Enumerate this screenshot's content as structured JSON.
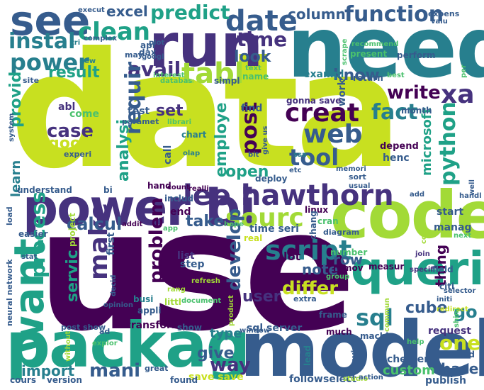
{
  "palette": {
    "yellow": "#c8e020",
    "lime": "#a2da37",
    "green": "#4ac16d",
    "teal": "#1fa187",
    "cyan": "#277f8e",
    "blue": "#365c8d",
    "indigo": "#46327e",
    "purple": "#440154"
  },
  "words": {
    "data": "data",
    "use": "use",
    "need": "need",
    "model": "model",
    "packag": "packag",
    "code": "code",
    "queri": "queri",
    "power_bi": "power bi",
    "run": "run",
    "see": "see",
    "want": "want",
    "lee_hawthorn": "lee hawthorn",
    "creat": "creat",
    "web": "web",
    "tool": "tool",
    "sourc": "sourc",
    "date": "date",
    "make": "make",
    "script": "script",
    "sql": "sql",
    "one": "one",
    "function": "function",
    "clean": "clean",
    "tabl": "tabl",
    "power": "power",
    "instal": "instal",
    "predict": "predict",
    "excel": "excel",
    "column": "column",
    "time": "time",
    "avail": "avail",
    "requir": "requir",
    "look": "look",
    "result": "result",
    "write": "write",
    "know": "know",
    "xa": "xa",
    "fact": "fact",
    "python": "python",
    "post": "post",
    "process": "process",
    "provid": "provid",
    "case": "case",
    "good": "good",
    "set": "set",
    "employe": "employe",
    "analysi": "analysi",
    "microsoft": "microsoft",
    "learn": "learn",
    "open": "open",
    "calcul": "calcul",
    "take": "take",
    "problem": "problem",
    "develop": "develop",
    "differ": "differ",
    "servic": "servic",
    "user": "user",
    "mani": "mani",
    "import": "import",
    "give": "give",
    "way": "way",
    "go": "go",
    "base": "base",
    "cube": "cube",
    "note": "note",
    "row": "row",
    "thing": "thing",
    "lot": "lot",
    "list": "list",
    "step": "step",
    "type": "type",
    "transform": "transform",
    "sql_server": "sql server",
    "save_save": "save save",
    "custom": "custom",
    "publish": "publish",
    "select": "select",
    "follow": "follow",
    "chester": "chester",
    "request": "request",
    "much": "much",
    "machin": "machin",
    "start": "start",
    "henc": "henc",
    "depend": "depend",
    "manag": "manag",
    "end": "end",
    "time_seri": "time seri",
    "first": "first",
    "project": "project",
    "exampl": "exampl",
    "work": "work",
    "gonna_save": "gonna save",
    "test": "test",
    "come": "come",
    "abl": "abl",
    "find": "find",
    "call": "call",
    "chart": "chart",
    "understand": "understand",
    "bi": "bi",
    "hand": "hand",
    "count": "count",
    "realli": "realli",
    "includ": "includ",
    "deploy": "deploy",
    "linux": "linux",
    "cran": "cran",
    "chang": "chang",
    "diagram": "diagram",
    "number": "number",
    "remov": "remov",
    "measur": "measur",
    "field": "field",
    "specif": "specif",
    "join": "join",
    "citi": "citi",
    "initi": "initi",
    "selector": "selector",
    "redirect": "redirect",
    "shini": "shini",
    "help": "help",
    "environ": "environ",
    "around": "around",
    "lead": "lead",
    "frame": "frame",
    "extra": "extra",
    "group": "group",
    "neural_network": "neural network",
    "stat": "stat",
    "easier": "easier",
    "load": "load",
    "addit": "addit",
    "app": "app",
    "hope": "hope",
    "real": "real",
    "refresh": "refresh",
    "rang": "rang",
    "littl": "littl",
    "decid": "decid",
    "opinion": "opinion",
    "busi": "busi",
    "appli": "appli",
    "product": "product",
    "document": "document",
    "post_show": "post show",
    "ad": "ad",
    "show": "show",
    "window": "window",
    "without": "without",
    "explor": "explor",
    "cours": "cours",
    "version": "version",
    "great": "great",
    "found": "found",
    "studio": "studio",
    "action": "action",
    "commun": "commun",
    "copi": "copi",
    "next": "next",
    "handl": "handl",
    "well": "well",
    "add": "add",
    "usual": "usual",
    "sort": "sort",
    "memori": "memori",
    "etc": "etc",
    "ssa": "ssa",
    "give_us": "give us",
    "bit": "bit",
    "olap": "olap",
    "experi": "experi",
    "paramet": "paramet",
    "librari": "librari",
    "system": "system",
    "site": "site",
    "new": "new",
    "tri": "tri",
    "complex": "complex",
    "execut": "execut",
    "databas": "databas",
    "api": "api",
    "plot": "plot",
    "dax": "dax",
    "googl": "googl",
    "may": "may",
    "interest": "interest",
    "simpl": "simpl",
    "name": "name",
    "text": "text",
    "recommend": "recommend",
    "scrape": "scrape",
    "present": "present",
    "perform": "perform",
    "expens": "expens",
    "valu": "valu",
    "return": "return",
    "best": "best",
    "month": "month",
    "per": "per"
  }
}
